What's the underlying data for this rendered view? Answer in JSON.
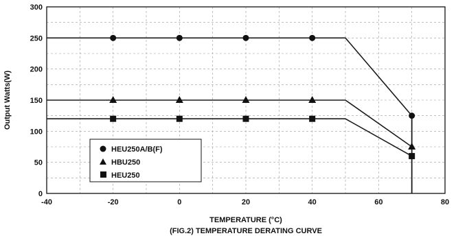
{
  "chart_data": {
    "type": "line",
    "xlabel": "TEMPERATURE (°C)",
    "caption": "(FIG.2) TEMPERATURE DERATING CURVE",
    "ylabel": "Output Watts(W)",
    "xlim": [
      -40,
      80
    ],
    "ylim": [
      0,
      300
    ],
    "x_ticks": [
      -40,
      -20,
      0,
      20,
      40,
      60,
      80
    ],
    "y_ticks": [
      0,
      50,
      100,
      150,
      200,
      250,
      300
    ],
    "x_minor_step": 10,
    "y_minor_step": 25,
    "grid": "dashed",
    "legend_position": "bottom-left",
    "series": [
      {
        "name": "HEU250A/B(F)",
        "marker": "circle",
        "points": [
          [
            -40,
            250
          ],
          [
            50,
            250
          ],
          [
            70,
            125
          ]
        ],
        "marker_x": [
          -20,
          0,
          20,
          40,
          70
        ],
        "marker_y": [
          250,
          250,
          250,
          250,
          125
        ]
      },
      {
        "name": "HBU250",
        "marker": "triangle",
        "points": [
          [
            -40,
            150
          ],
          [
            50,
            150
          ],
          [
            70,
            75
          ]
        ],
        "marker_x": [
          -20,
          0,
          20,
          40,
          70
        ],
        "marker_y": [
          150,
          150,
          150,
          150,
          75
        ]
      },
      {
        "name": "HEU250",
        "marker": "square",
        "points": [
          [
            -40,
            120
          ],
          [
            50,
            120
          ],
          [
            70,
            60
          ]
        ],
        "marker_x": [
          -20,
          0,
          20,
          40,
          70
        ],
        "marker_y": [
          120,
          120,
          120,
          120,
          60
        ]
      }
    ],
    "drop_line": {
      "x": 70,
      "from": 125,
      "to": 0
    },
    "colors": {
      "line": "#1a1a1a",
      "grid": "#9a9a9a",
      "frame": "#111111"
    }
  }
}
